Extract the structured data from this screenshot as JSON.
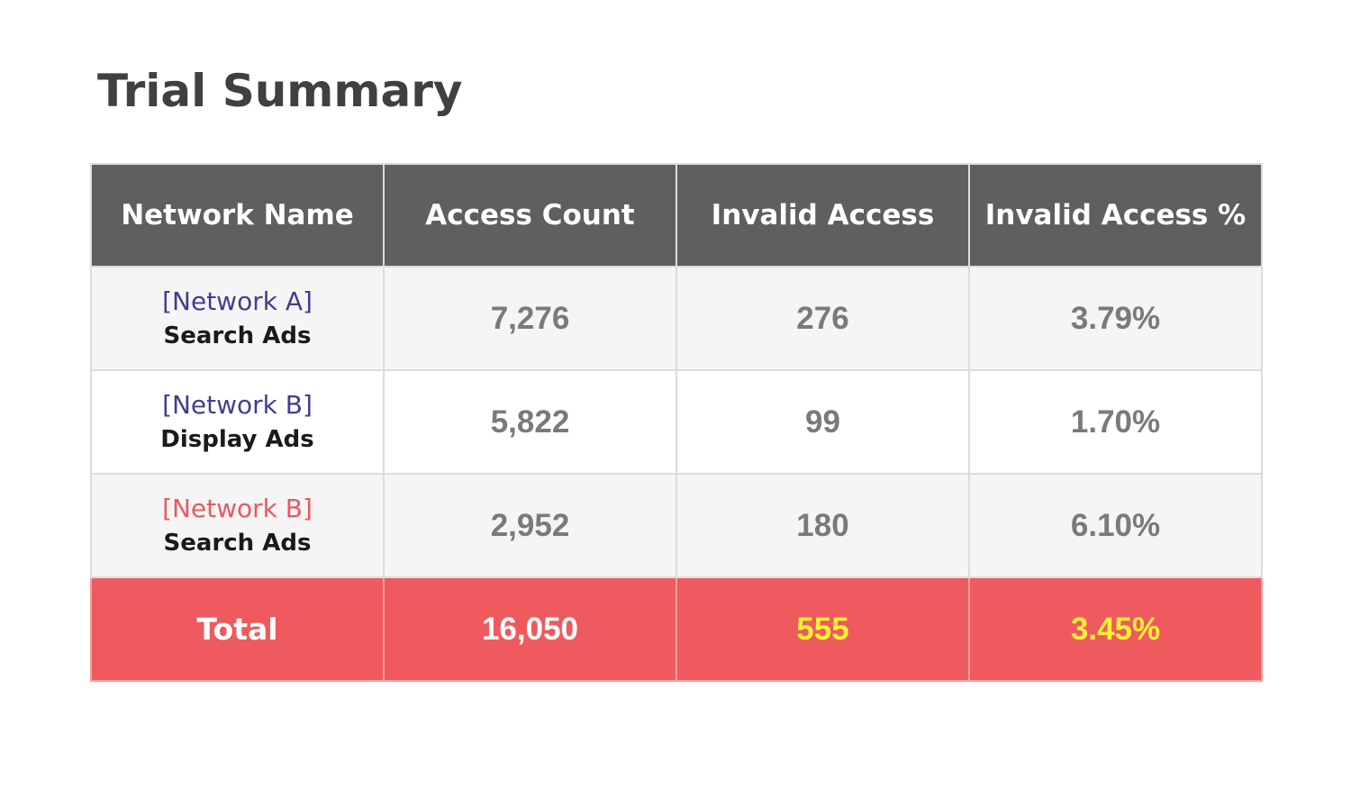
{
  "title": "Trial Summary",
  "table": {
    "headers": [
      "Network Name",
      "Access Count",
      "Invalid Access",
      "Invalid Access %"
    ],
    "rows": [
      {
        "network": "[Network A]",
        "ad_type": "Search Ads",
        "access_count": "7,276",
        "invalid_access": "276",
        "invalid_pct": "3.79%",
        "network_color": "#3f3f8f"
      },
      {
        "network": "[Network B]",
        "ad_type": "Display Ads",
        "access_count": "5,822",
        "invalid_access": "99",
        "invalid_pct": "1.70%",
        "network_color": "#3f3f8f"
      },
      {
        "network": "[Network B]",
        "ad_type": "Search Ads",
        "access_count": "2,952",
        "invalid_access": "180",
        "invalid_pct": "6.10%",
        "network_color": "#e85a60"
      }
    ],
    "total": {
      "label": "Total",
      "access_count": "16,050",
      "invalid_access": "555",
      "invalid_pct": "3.45%"
    }
  },
  "colors": {
    "header_bg": "#5f5f5f",
    "total_bg": "#ee5a5e",
    "highlight_text": "#fff236"
  }
}
